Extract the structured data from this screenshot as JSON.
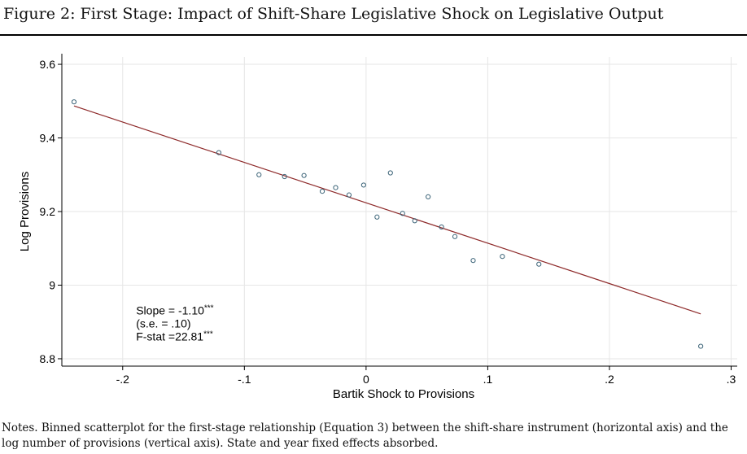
{
  "figure": {
    "title": "Figure 2: First Stage: Impact of Shift-Share Legislative Shock on Legislative Output",
    "notes": "Notes. Binned scatterplot for the first-stage relationship (Equation 3) between the shift-share instrument (horizontal axis) and the log number of provisions (vertical axis). State and year fixed effects absorbed."
  },
  "chart_data": {
    "type": "scatter",
    "xlabel": "Bartik Shock to Provisions",
    "ylabel": "Log Provisions",
    "xlim": [
      -0.25,
      0.305
    ],
    "ylim": [
      8.78,
      9.62
    ],
    "xticks": [
      -0.2,
      -0.1,
      0,
      0.1,
      0.2,
      0.3
    ],
    "xtick_labels": [
      "-.2",
      "-.1",
      "0",
      ".1",
      ".2",
      ".3"
    ],
    "yticks": [
      8.8,
      9.0,
      9.2,
      9.4,
      9.6
    ],
    "ytick_labels": [
      "8.8",
      "9",
      "9.2",
      "9.4",
      "9.6"
    ],
    "grid": true,
    "points": [
      {
        "x": -0.24,
        "y": 9.498
      },
      {
        "x": -0.121,
        "y": 9.36
      },
      {
        "x": -0.088,
        "y": 9.3
      },
      {
        "x": -0.067,
        "y": 9.295
      },
      {
        "x": -0.051,
        "y": 9.298
      },
      {
        "x": -0.036,
        "y": 9.255
      },
      {
        "x": -0.025,
        "y": 9.265
      },
      {
        "x": -0.014,
        "y": 9.245
      },
      {
        "x": -0.002,
        "y": 9.272
      },
      {
        "x": 0.009,
        "y": 9.185
      },
      {
        "x": 0.02,
        "y": 9.305
      },
      {
        "x": 0.03,
        "y": 9.195
      },
      {
        "x": 0.04,
        "y": 9.175
      },
      {
        "x": 0.051,
        "y": 9.24
      },
      {
        "x": 0.062,
        "y": 9.158
      },
      {
        "x": 0.073,
        "y": 9.132
      },
      {
        "x": 0.088,
        "y": 9.067
      },
      {
        "x": 0.112,
        "y": 9.078
      },
      {
        "x": 0.142,
        "y": 9.057
      },
      {
        "x": 0.275,
        "y": 8.834
      }
    ],
    "fit_line": {
      "x": [
        -0.24,
        0.275
      ],
      "y": [
        9.487,
        8.922
      ]
    },
    "annotations": [
      {
        "label": "Slope = -1.10",
        "sup": "***"
      },
      {
        "label": "(s.e. = .10)",
        "sup": ""
      },
      {
        "label": "F-stat =22.81",
        "sup": "***"
      }
    ],
    "colors": {
      "points": "#3c6478",
      "fit_line": "#8e2a2a",
      "grid": "#e6e6e6",
      "axis": "#000000"
    }
  }
}
